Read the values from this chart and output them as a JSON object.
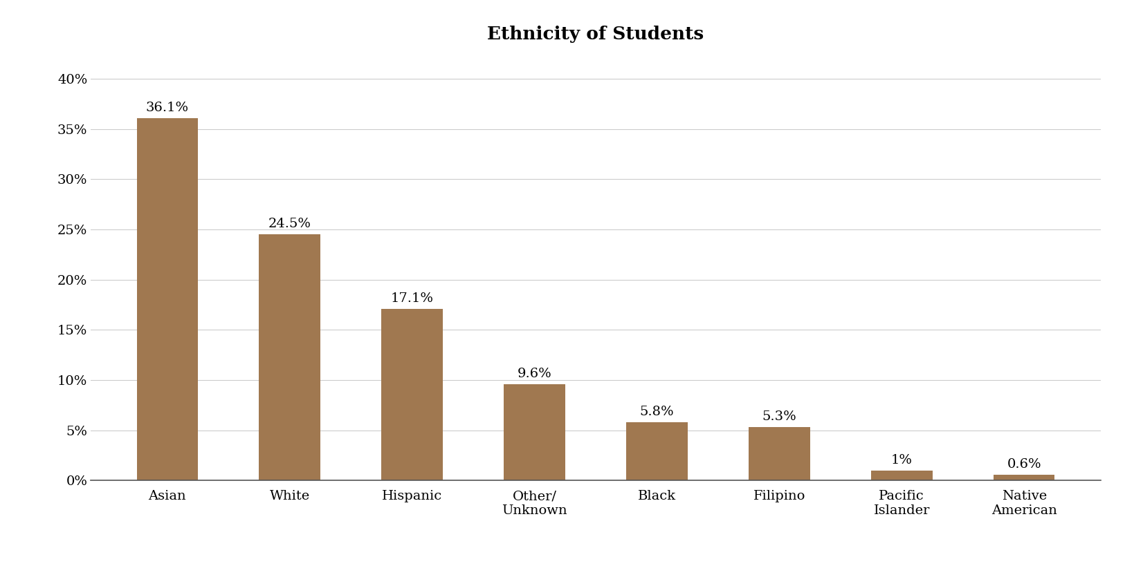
{
  "title": "Ethnicity of Students",
  "categories": [
    "Asian",
    "White",
    "Hispanic",
    "Other/\nUnknown",
    "Black",
    "Filipino",
    "Pacific\nIslander",
    "Native\nAmerican"
  ],
  "values": [
    36.1,
    24.5,
    17.1,
    9.6,
    5.8,
    5.3,
    1.0,
    0.6
  ],
  "labels": [
    "36.1%",
    "24.5%",
    "17.1%",
    "9.6%",
    "5.8%",
    "5.3%",
    "1%",
    "0.6%"
  ],
  "bar_color": "#a07850",
  "background_color": "#ffffff",
  "ylim": [
    0,
    42
  ],
  "yticks": [
    0,
    5,
    10,
    15,
    20,
    25,
    30,
    35,
    40
  ],
  "title_fontsize": 19,
  "label_fontsize": 14,
  "tick_fontsize": 14
}
